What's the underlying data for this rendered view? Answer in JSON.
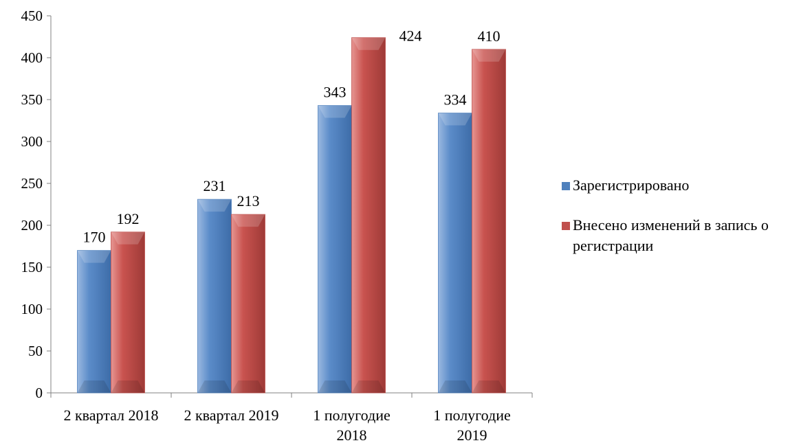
{
  "chart_data": {
    "type": "bar",
    "categories": [
      "2 квартал 2018",
      "2 квартал 2019",
      "1 полугодие 2018",
      "1 полугодие 2019"
    ],
    "series": [
      {
        "name": "Зарегистрировано",
        "values": [
          170,
          231,
          343,
          334
        ],
        "color": "#4f81bd"
      },
      {
        "name": "Внесено изменений в запись о регистрации",
        "values": [
          192,
          213,
          424,
          410
        ],
        "color": "#c0504d"
      }
    ],
    "title": "",
    "xlabel": "",
    "ylabel": "",
    "ylim": [
      0,
      450
    ],
    "yticks": [
      0,
      50,
      100,
      150,
      200,
      250,
      300,
      350,
      400,
      450
    ],
    "grid": false,
    "legend_position": "right",
    "data_labels": true
  }
}
